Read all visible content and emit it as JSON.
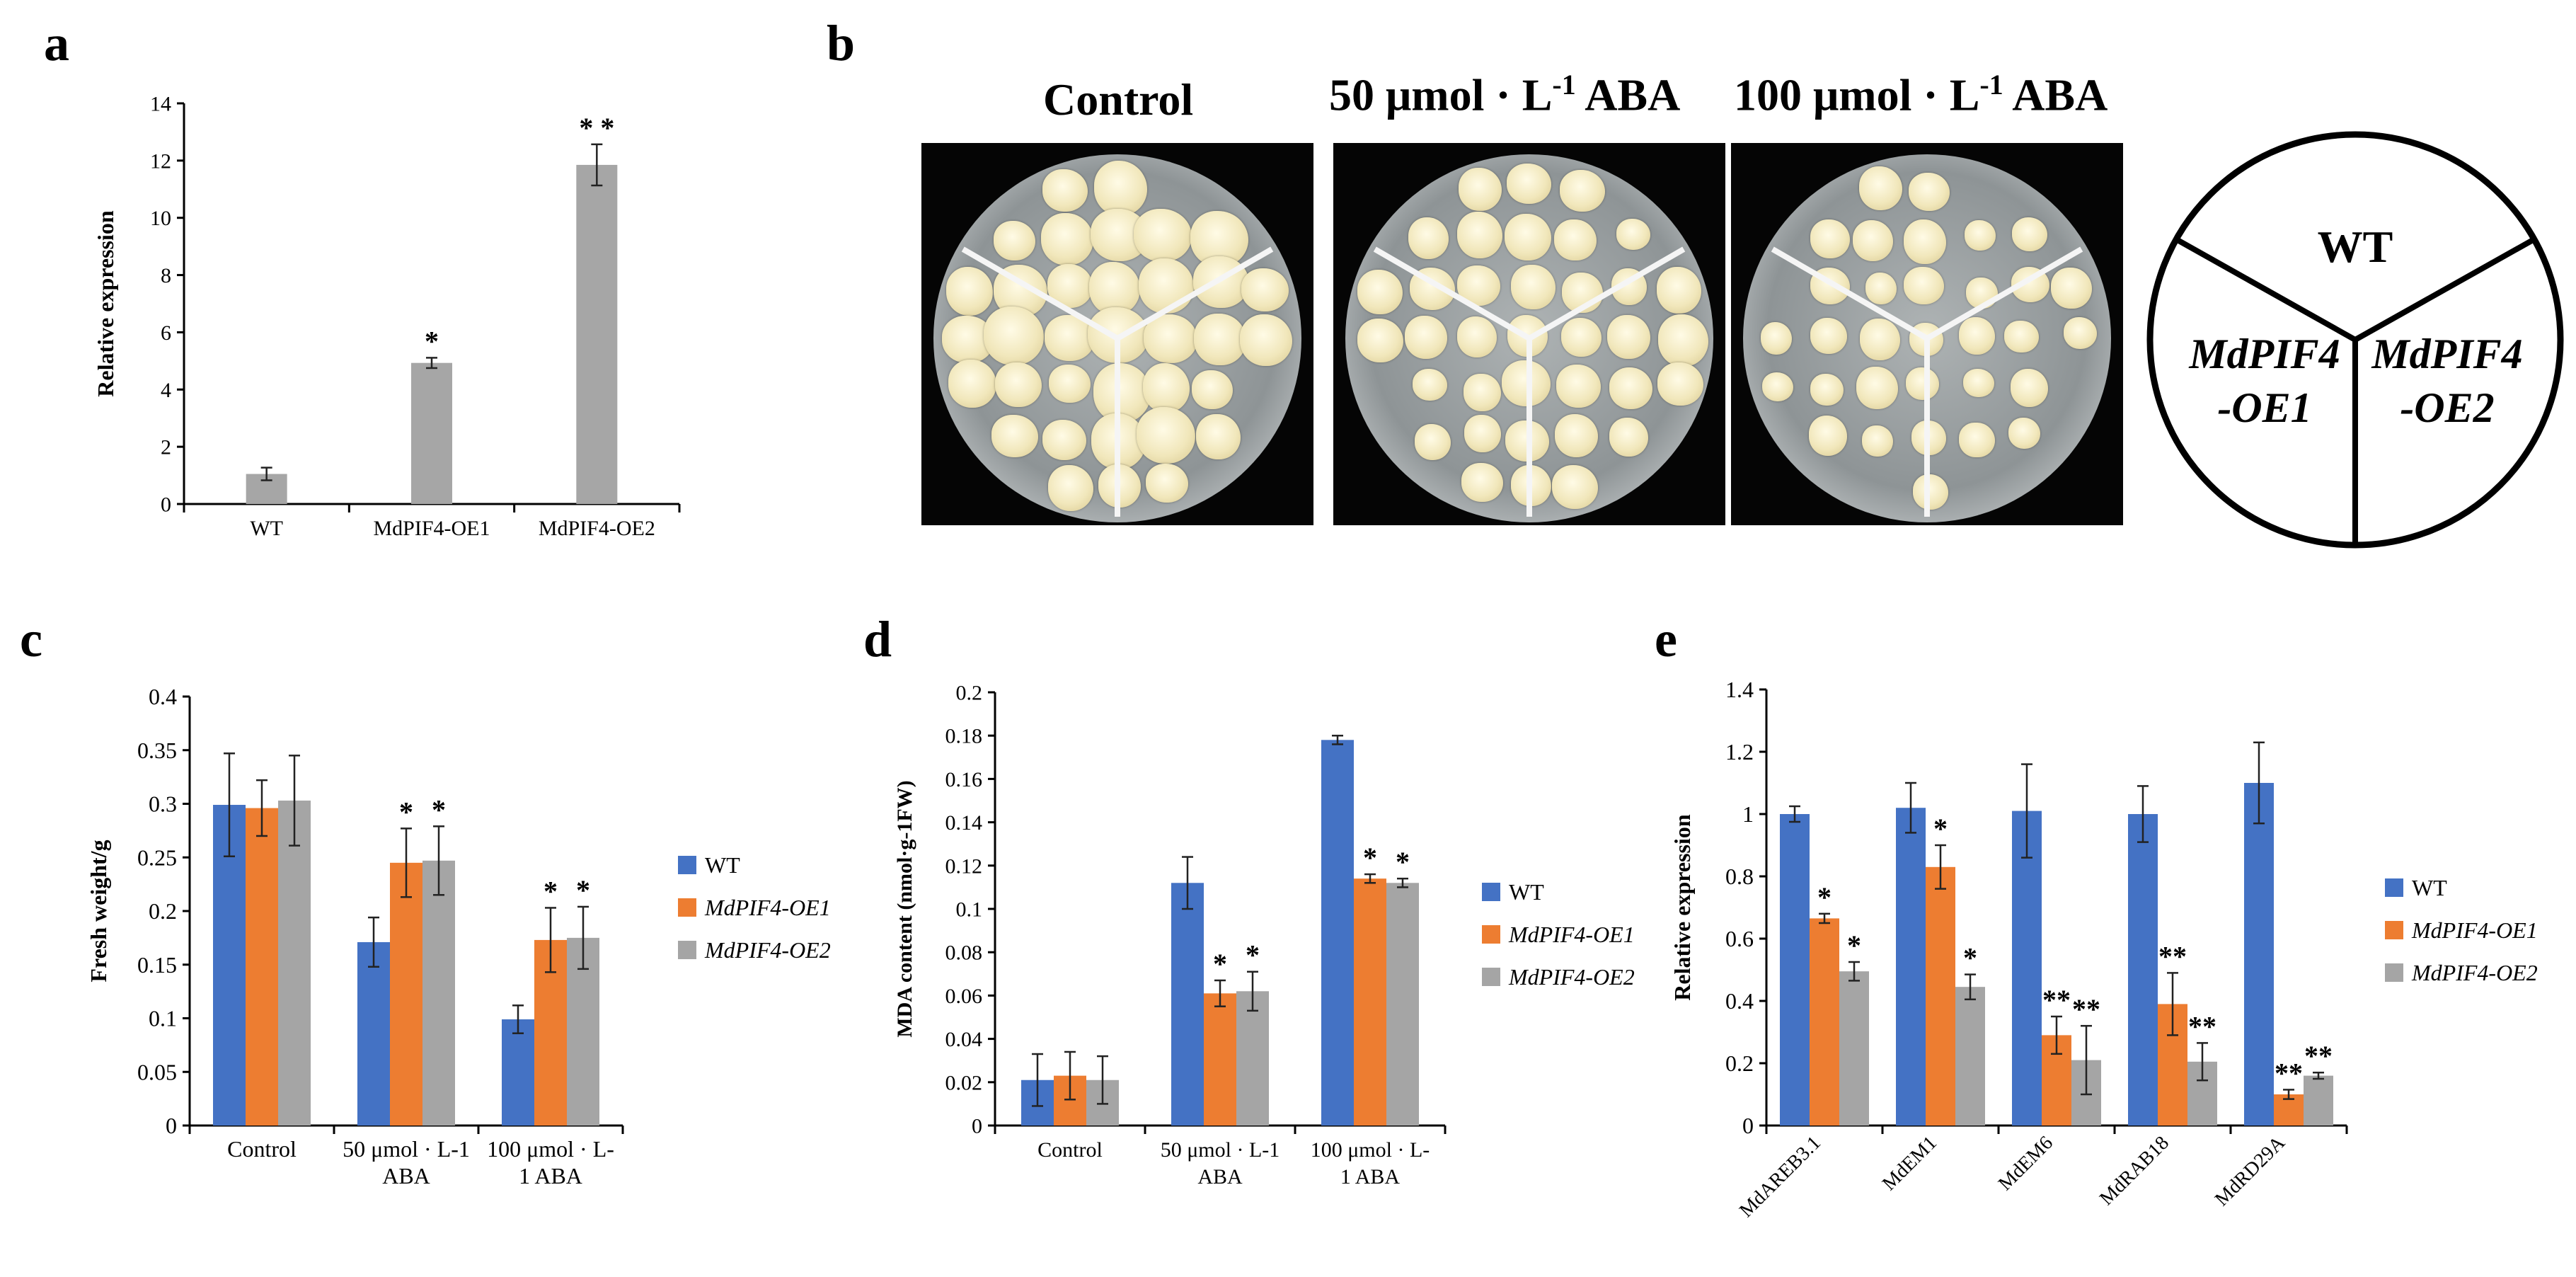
{
  "panels": {
    "a": "a",
    "b": "b",
    "c": "c",
    "d": "d",
    "e": "e"
  },
  "plate_panel": {
    "titles": [
      "Control",
      "50 μmol · L",
      "ABA",
      "100 μmol · L",
      "ABA"
    ],
    "title_control": "Control",
    "title_50": "50 μmol · L",
    "title_100": "100 μmol · L",
    "superscript": "-1",
    "aba": "ABA",
    "schematic_labels": {
      "wt": "WT",
      "oe1_line1": "MdPIF4",
      "oe1_line2": "-OE1",
      "oe2_line1": "MdPIF4",
      "oe2_line2": "-OE2"
    }
  },
  "chart_data": [
    {
      "id": "a",
      "type": "bar",
      "categories": [
        "WT",
        "MdPIF4-OE1",
        "MdPIF4-OE2"
      ],
      "series": [
        {
          "values": [
            1.05,
            4.93,
            11.85
          ],
          "errors": [
            0.22,
            0.18,
            0.72
          ],
          "color": "#a6a6a6"
        }
      ],
      "annotations": [
        "",
        "*",
        "* *"
      ],
      "ylabel": "Relative expression",
      "ylim": [
        0,
        14
      ],
      "yticks": [
        0,
        2,
        4,
        6,
        8,
        10,
        12,
        14
      ]
    },
    {
      "id": "c",
      "type": "bar",
      "categories": [
        "Control",
        "50 μmol · L-1 ABA",
        "100 μmol · L-1 ABA"
      ],
      "category_lines": [
        [
          "Control"
        ],
        [
          "50 μmol · L-1",
          "ABA"
        ],
        [
          "100 μmol · L-",
          "1 ABA"
        ]
      ],
      "series": [
        {
          "name": "WT",
          "values": [
            0.299,
            0.171,
            0.099
          ],
          "errors": [
            0.048,
            0.023,
            0.013
          ],
          "color": "#4472c4",
          "stars": [
            "",
            "",
            ""
          ]
        },
        {
          "name": "MdPIF4-OE1",
          "values": [
            0.296,
            0.245,
            0.173
          ],
          "errors": [
            0.026,
            0.032,
            0.03
          ],
          "color": "#ed7d31",
          "stars": [
            "",
            "*",
            "*"
          ]
        },
        {
          "name": "MdPIF4-OE2",
          "values": [
            0.303,
            0.247,
            0.175
          ],
          "errors": [
            0.042,
            0.032,
            0.029
          ],
          "color": "#a5a5a5",
          "stars": [
            "",
            "*",
            "*"
          ]
        }
      ],
      "ylabel": "Fresh weight/g",
      "ylim": [
        0,
        0.4
      ],
      "yticks": [
        "0",
        "0.05",
        "0.1",
        "0.15",
        "0.2",
        "0.25",
        "0.3",
        "0.35",
        "0.4"
      ],
      "legend_position": "right"
    },
    {
      "id": "d",
      "type": "bar",
      "categories": [
        "Control",
        "50 μmol · L-1 ABA",
        "100 μmol · L-1 ABA"
      ],
      "category_lines": [
        [
          "Control"
        ],
        [
          "50 μmol · L-1",
          "ABA"
        ],
        [
          "100 μmol · L-",
          "1 ABA"
        ]
      ],
      "series": [
        {
          "name": "WT",
          "values": [
            0.021,
            0.112,
            0.178
          ],
          "errors": [
            0.012,
            0.012,
            0.002
          ],
          "color": "#4472c4",
          "stars": [
            "",
            "",
            ""
          ]
        },
        {
          "name": "MdPIF4-OE1",
          "values": [
            0.023,
            0.061,
            0.114
          ],
          "errors": [
            0.011,
            0.006,
            0.002
          ],
          "color": "#ed7d31",
          "stars": [
            "",
            "*",
            "*"
          ]
        },
        {
          "name": "MdPIF4-OE2",
          "values": [
            0.021,
            0.062,
            0.112
          ],
          "errors": [
            0.011,
            0.009,
            0.002
          ],
          "color": "#a5a5a5",
          "stars": [
            "",
            "*",
            "*"
          ]
        }
      ],
      "ylabel": "MDA content (nmol·g-1FW)",
      "ylim": [
        0,
        0.2
      ],
      "yticks": [
        "0",
        "0.02",
        "0.04",
        "0.06",
        "0.08",
        "0.1",
        "0.12",
        "0.14",
        "0.16",
        "0.18",
        "0.2"
      ],
      "legend_position": "right"
    },
    {
      "id": "e",
      "type": "bar",
      "categories": [
        "MdAREB3.1",
        "MdEM1",
        "MdEM6",
        "MdRAB18",
        "MdRD29A"
      ],
      "series": [
        {
          "name": "WT",
          "values": [
            1.0,
            1.02,
            1.01,
            1.0,
            1.1
          ],
          "errors": [
            0.025,
            0.08,
            0.15,
            0.09,
            0.13
          ],
          "color": "#4472c4",
          "stars": [
            "",
            "",
            "",
            "",
            ""
          ]
        },
        {
          "name": "MdPIF4-OE1",
          "values": [
            0.665,
            0.83,
            0.29,
            0.39,
            0.1
          ],
          "errors": [
            0.015,
            0.07,
            0.06,
            0.1,
            0.015
          ],
          "color": "#ed7d31",
          "stars": [
            "*",
            "*",
            "**",
            "**",
            "**"
          ]
        },
        {
          "name": "MdPIF4-OE2",
          "values": [
            0.495,
            0.445,
            0.21,
            0.205,
            0.16
          ],
          "errors": [
            0.03,
            0.04,
            0.11,
            0.06,
            0.01
          ],
          "color": "#a5a5a5",
          "stars": [
            "*",
            "*",
            "**",
            "**",
            "**"
          ]
        }
      ],
      "ylabel": "Relative expression",
      "ylim": [
        0,
        1.4
      ],
      "yticks": [
        "0",
        "0.2",
        "0.4",
        "0.6",
        "0.8",
        "1",
        "1.2",
        "1.4"
      ],
      "legend_position": "right"
    }
  ]
}
